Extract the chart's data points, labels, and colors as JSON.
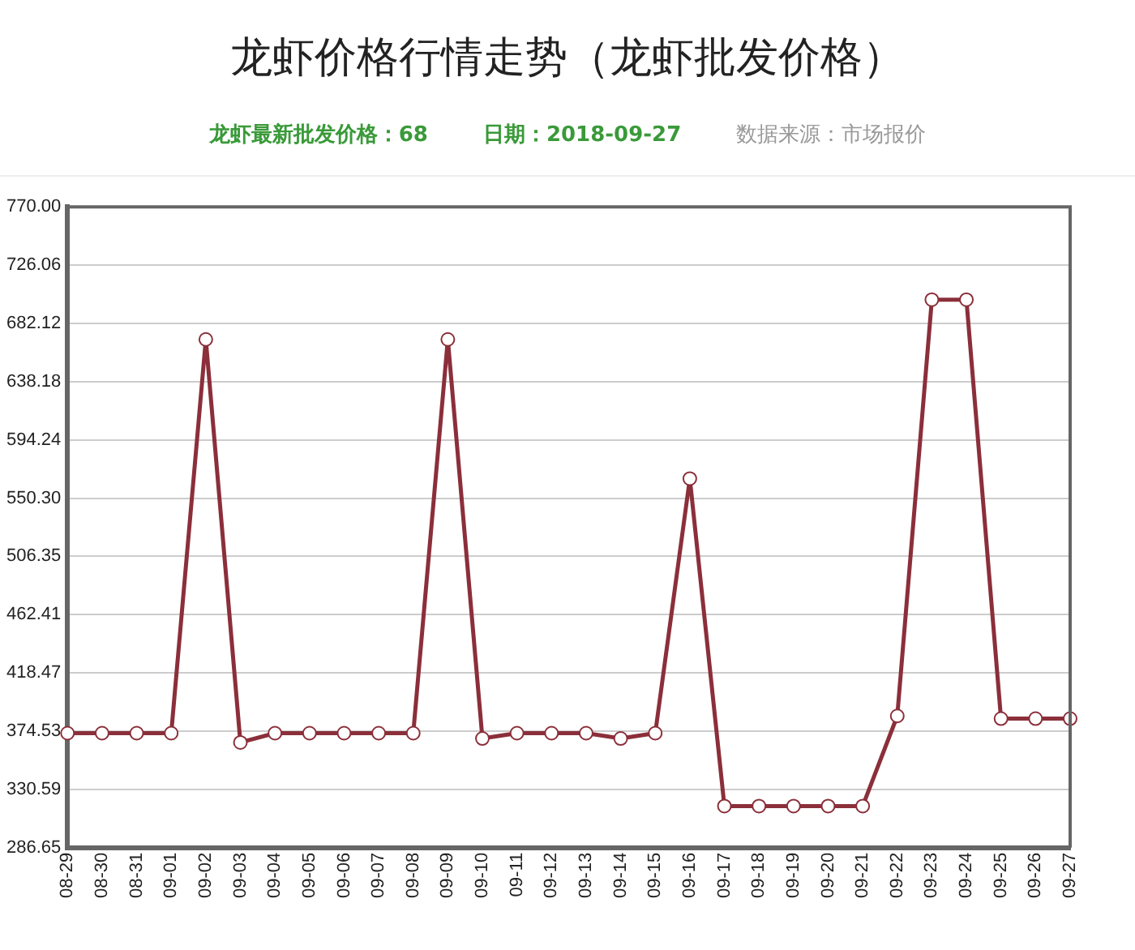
{
  "chart_data": {
    "type": "line",
    "title": "龙虾价格行情走势（龙虾批发价格）",
    "annotations": [
      "龙虾最新批发价格：68",
      "日期：2018-09-27",
      "数据来源：市场报价"
    ],
    "categories": [
      "08-29",
      "08-30",
      "08-31",
      "09-01",
      "09-02",
      "09-03",
      "09-04",
      "09-05",
      "09-06",
      "09-07",
      "09-08",
      "09-09",
      "09-10",
      "09-11",
      "09-12",
      "09-13",
      "09-14",
      "09-15",
      "09-16",
      "09-17",
      "09-18",
      "09-19",
      "09-20",
      "09-21",
      "09-22",
      "09-23",
      "09-24",
      "09-25",
      "09-26",
      "09-27"
    ],
    "series": [
      {
        "color": "#8b2f3a",
        "values": [
          373,
          373,
          373,
          373,
          670,
          366,
          373,
          373,
          373,
          373,
          373,
          670,
          369,
          373,
          373,
          373,
          369,
          373,
          565,
          318,
          318,
          318,
          318,
          318,
          386,
          700,
          700,
          384,
          384,
          384
        ]
      }
    ],
    "ylim": [
      286.65,
      770
    ],
    "yticks": [
      {
        "value": 286.65,
        "label": "286.65"
      },
      {
        "value": 330.59,
        "label": "330.59"
      },
      {
        "value": 374.53,
        "label": "374.53"
      },
      {
        "value": 418.47,
        "label": "418.47"
      },
      {
        "value": 462.41,
        "label": "462.41"
      },
      {
        "value": 506.35,
        "label": "506.35"
      },
      {
        "value": 550.3,
        "label": "550.30"
      },
      {
        "value": 594.24,
        "label": "594.24"
      },
      {
        "value": 638.18,
        "label": "638.18"
      },
      {
        "value": 682.12,
        "label": "682.12"
      },
      {
        "value": 726.06,
        "label": "726.06"
      },
      {
        "value": 770,
        "label": "770.00"
      }
    ],
    "grid": "y",
    "legend": false,
    "marker": "circle",
    "line_style": "solid"
  }
}
